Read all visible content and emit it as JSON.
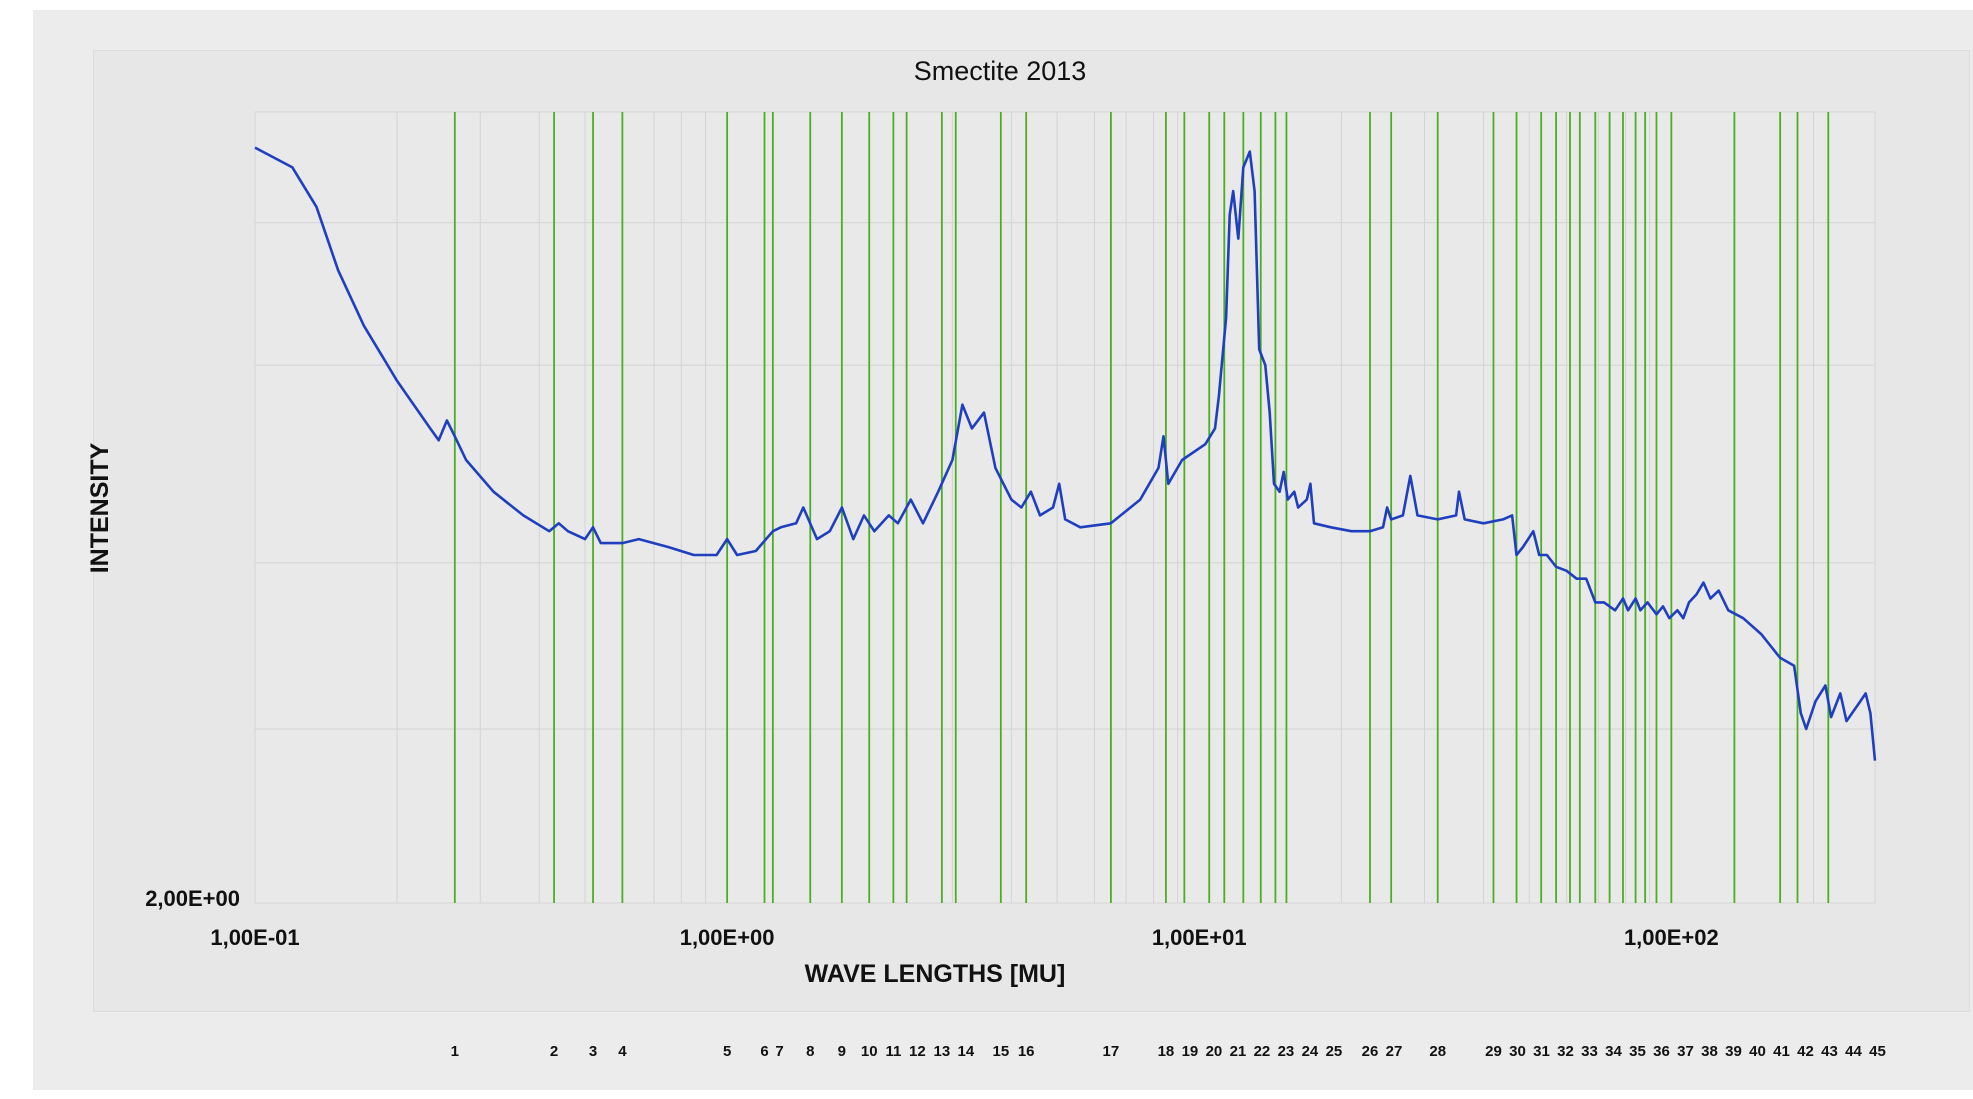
{
  "chart_data": {
    "type": "line",
    "title": "Smectite 2013",
    "xlabel": "WAVE LENGTHS [MU]",
    "ylabel": "INTENSITY",
    "x_scale": "log",
    "xlim": [
      0.1,
      270
    ],
    "x_ticks": [
      {
        "value": 0.1,
        "label": "1,00E-01"
      },
      {
        "value": 1,
        "label": "1,00E+00"
      },
      {
        "value": 10,
        "label": "1,00E+01"
      },
      {
        "value": 100,
        "label": "1,00E+02"
      }
    ],
    "y_tick_label": "2,00E+00",
    "grid": true,
    "series": [
      {
        "color": "#1f3fbf",
        "points": [
          [
            0.1,
            0.955
          ],
          [
            0.12,
            0.93
          ],
          [
            0.135,
            0.88
          ],
          [
            0.15,
            0.8
          ],
          [
            0.17,
            0.73
          ],
          [
            0.2,
            0.66
          ],
          [
            0.235,
            0.6
          ],
          [
            0.245,
            0.585
          ],
          [
            0.255,
            0.61
          ],
          [
            0.265,
            0.59
          ],
          [
            0.28,
            0.56
          ],
          [
            0.32,
            0.52
          ],
          [
            0.37,
            0.49
          ],
          [
            0.42,
            0.47
          ],
          [
            0.44,
            0.48
          ],
          [
            0.46,
            0.47
          ],
          [
            0.5,
            0.46
          ],
          [
            0.52,
            0.475
          ],
          [
            0.54,
            0.455
          ],
          [
            0.6,
            0.455
          ],
          [
            0.65,
            0.46
          ],
          [
            0.75,
            0.45
          ],
          [
            0.85,
            0.44
          ],
          [
            0.95,
            0.44
          ],
          [
            1.0,
            0.46
          ],
          [
            1.05,
            0.44
          ],
          [
            1.15,
            0.445
          ],
          [
            1.25,
            0.47
          ],
          [
            1.3,
            0.475
          ],
          [
            1.4,
            0.48
          ],
          [
            1.45,
            0.5
          ],
          [
            1.55,
            0.46
          ],
          [
            1.65,
            0.47
          ],
          [
            1.75,
            0.5
          ],
          [
            1.85,
            0.46
          ],
          [
            1.95,
            0.49
          ],
          [
            2.05,
            0.47
          ],
          [
            2.2,
            0.49
          ],
          [
            2.3,
            0.48
          ],
          [
            2.45,
            0.51
          ],
          [
            2.6,
            0.48
          ],
          [
            2.8,
            0.52
          ],
          [
            3.0,
            0.56
          ],
          [
            3.15,
            0.63
          ],
          [
            3.3,
            0.6
          ],
          [
            3.5,
            0.62
          ],
          [
            3.7,
            0.55
          ],
          [
            4.0,
            0.51
          ],
          [
            4.2,
            0.5
          ],
          [
            4.4,
            0.52
          ],
          [
            4.6,
            0.49
          ],
          [
            4.9,
            0.5
          ],
          [
            5.05,
            0.53
          ],
          [
            5.2,
            0.485
          ],
          [
            5.6,
            0.475
          ],
          [
            6.5,
            0.48
          ],
          [
            7.5,
            0.51
          ],
          [
            8.2,
            0.55
          ],
          [
            8.4,
            0.59
          ],
          [
            8.6,
            0.53
          ],
          [
            9.2,
            0.56
          ],
          [
            10.3,
            0.58
          ],
          [
            10.8,
            0.6
          ],
          [
            11.0,
            0.64
          ],
          [
            11.4,
            0.74
          ],
          [
            11.6,
            0.87
          ],
          [
            11.8,
            0.9
          ],
          [
            12.1,
            0.84
          ],
          [
            12.4,
            0.93
          ],
          [
            12.8,
            0.95
          ],
          [
            13.1,
            0.9
          ],
          [
            13.4,
            0.7
          ],
          [
            13.8,
            0.68
          ],
          [
            14.1,
            0.62
          ],
          [
            14.4,
            0.53
          ],
          [
            14.8,
            0.52
          ],
          [
            15.1,
            0.545
          ],
          [
            15.4,
            0.51
          ],
          [
            15.9,
            0.52
          ],
          [
            16.2,
            0.5
          ],
          [
            16.9,
            0.51
          ],
          [
            17.2,
            0.53
          ],
          [
            17.5,
            0.48
          ],
          [
            19.0,
            0.475
          ],
          [
            21.0,
            0.47
          ],
          [
            23.0,
            0.47
          ],
          [
            24.5,
            0.475
          ],
          [
            25.0,
            0.5
          ],
          [
            25.5,
            0.485
          ],
          [
            27.0,
            0.49
          ],
          [
            28.0,
            0.54
          ],
          [
            29.0,
            0.49
          ],
          [
            32.0,
            0.485
          ],
          [
            35.0,
            0.49
          ],
          [
            35.5,
            0.52
          ],
          [
            36.5,
            0.485
          ],
          [
            40.0,
            0.48
          ],
          [
            44.0,
            0.485
          ],
          [
            46.0,
            0.49
          ],
          [
            47.0,
            0.44
          ],
          [
            48.5,
            0.45
          ],
          [
            51.0,
            0.47
          ],
          [
            52.5,
            0.44
          ],
          [
            54.5,
            0.44
          ],
          [
            57.0,
            0.425
          ],
          [
            60.0,
            0.42
          ],
          [
            63.0,
            0.41
          ],
          [
            66.0,
            0.41
          ],
          [
            69.0,
            0.38
          ],
          [
            72.0,
            0.38
          ],
          [
            76.0,
            0.37
          ],
          [
            79.0,
            0.385
          ],
          [
            81.0,
            0.37
          ],
          [
            84.0,
            0.385
          ],
          [
            86.0,
            0.37
          ],
          [
            89.0,
            0.38
          ],
          [
            93.0,
            0.365
          ],
          [
            96.0,
            0.375
          ],
          [
            99.0,
            0.36
          ],
          [
            103.0,
            0.37
          ],
          [
            106.0,
            0.36
          ],
          [
            109.0,
            0.38
          ],
          [
            113.0,
            0.39
          ],
          [
            117.0,
            0.405
          ],
          [
            121.0,
            0.385
          ],
          [
            126.0,
            0.395
          ],
          [
            132.0,
            0.37
          ],
          [
            142.0,
            0.36
          ],
          [
            155.0,
            0.34
          ],
          [
            170.0,
            0.31
          ],
          [
            182.0,
            0.3
          ],
          [
            188.0,
            0.24
          ],
          [
            193.0,
            0.22
          ],
          [
            202.0,
            0.255
          ],
          [
            212.0,
            0.275
          ],
          [
            218.0,
            0.235
          ],
          [
            228.0,
            0.265
          ],
          [
            235.0,
            0.23
          ],
          [
            248.0,
            0.25
          ],
          [
            258.0,
            0.265
          ],
          [
            264.0,
            0.24
          ],
          [
            270.0,
            0.18
          ]
        ]
      }
    ],
    "marker_lines_x": [
      0.265,
      0.43,
      0.52,
      0.6,
      1.0,
      1.2,
      1.25,
      1.5,
      1.75,
      2.0,
      2.25,
      2.4,
      2.85,
      3.05,
      3.8,
      4.3,
      6.5,
      8.5,
      9.3,
      10.5,
      11.3,
      12.4,
      13.5,
      14.5,
      15.3,
      23.0,
      25.5,
      32.0,
      42.0,
      47.0,
      53.0,
      57.0,
      61.0,
      64.0,
      69.0,
      74.0,
      79.0,
      84.0,
      88.0,
      93.0,
      100.0,
      136.0,
      170.0,
      185.0,
      215.0
    ],
    "marker_labels": [
      "1",
      "2",
      "3",
      "4",
      "5",
      "6",
      "7",
      "8",
      "9",
      "10",
      "11",
      "12",
      "13",
      "14",
      "15",
      "16",
      "17",
      "18",
      "19",
      "20",
      "21",
      "22",
      "23",
      "24",
      "25",
      "26",
      "27",
      "28",
      "29",
      "30",
      "31",
      "32",
      "33",
      "34",
      "35",
      "36",
      "37",
      "38",
      "39",
      "40",
      "41",
      "42",
      "43",
      "44",
      "45"
    ],
    "marker_line_color": "#4caf1f"
  }
}
